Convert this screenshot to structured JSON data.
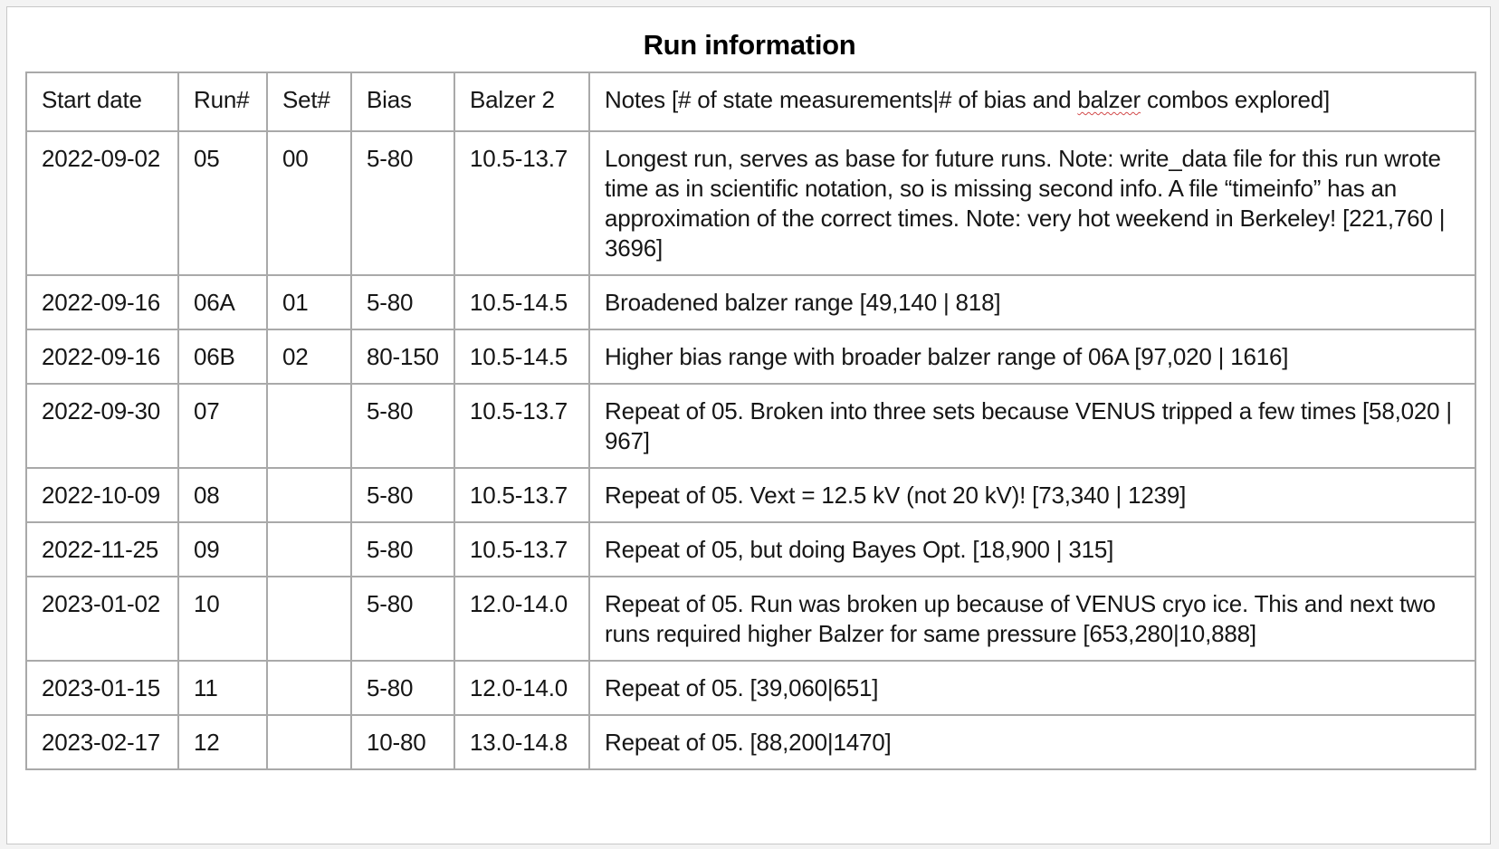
{
  "title": "Run information",
  "header": {
    "start_date": "Start date",
    "run": "Run#",
    "set": "Set#",
    "bias": "Bias",
    "balzer": "Balzer 2",
    "notes_before": "Notes [# of state measurements|# of bias and ",
    "notes_misspelled": "balzer",
    "notes_after": " combos explored]"
  },
  "rows": [
    {
      "start_date": "2022-09-02",
      "run": "05",
      "set": "00",
      "bias": "5-80",
      "balzer": "10.5-13.7",
      "notes": "Longest run, serves as base for future runs.  Note: write_data file for this run wrote time as in scientific notation, so is missing second info.  A file “timeinfo” has an approximation of the correct times.  Note: very hot weekend in Berkeley!  [221,760 | 3696]"
    },
    {
      "start_date": "2022-09-16",
      "run": "06A",
      "set": "01",
      "bias": "5-80",
      "balzer": "10.5-14.5",
      "notes": "Broadened balzer range [49,140 | 818]"
    },
    {
      "start_date": "2022-09-16",
      "run": "06B",
      "set": "02",
      "bias": "80-150",
      "balzer": "10.5-14.5",
      "notes": "Higher bias range with broader balzer range of 06A [97,020 | 1616]"
    },
    {
      "start_date": "2022-09-30",
      "run": "07",
      "set": "",
      "bias": "5-80",
      "balzer": "10.5-13.7",
      "notes": "Repeat of 05.  Broken into three sets because VENUS tripped a few times [58,020 | 967]"
    },
    {
      "start_date": "2022-10-09",
      "run": "08",
      "set": "",
      "bias": "5-80",
      "balzer": "10.5-13.7",
      "notes": "Repeat of 05.  Vext = 12.5 kV (not 20 kV)! [73,340 | 1239]"
    },
    {
      "start_date": "2022-11-25",
      "run": "09",
      "set": "",
      "bias": "5-80",
      "balzer": "10.5-13.7",
      "notes": "Repeat of 05, but doing Bayes Opt. [18,900 | 315]"
    },
    {
      "start_date": "2023-01-02",
      "run": "10",
      "set": "",
      "bias": "5-80",
      "balzer": "12.0-14.0",
      "notes": "Repeat of 05. Run was broken up because of VENUS cryo ice.  This and next two runs required higher Balzer for same pressure  [653,280|10,888]"
    },
    {
      "start_date": "2023-01-15",
      "run": "11",
      "set": "",
      "bias": "5-80",
      "balzer": "12.0-14.0",
      "notes": "Repeat of 05.  [39,060|651]"
    },
    {
      "start_date": "2023-02-17",
      "run": "12",
      "set": "",
      "bias": "10-80",
      "balzer": "13.0-14.8",
      "notes": "Repeat of 05. [88,200|1470]"
    }
  ]
}
